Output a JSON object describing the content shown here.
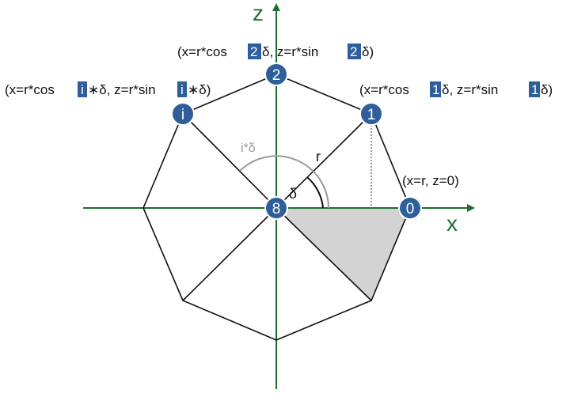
{
  "axes": {
    "x_label": "x",
    "z_label": "z",
    "axis_color": "#1f6e2f"
  },
  "colors": {
    "node_fill": "#2e5f9a",
    "node_text": "#ffffff",
    "highlight_box": "#2e5f9a",
    "wedge_fill": "#d3d3d3",
    "angle_arc_gray": "#9a9a9a",
    "line": "#111111"
  },
  "nodes": [
    {
      "id": "node-8",
      "label": "8"
    },
    {
      "id": "node-0",
      "label": "0"
    },
    {
      "id": "node-1",
      "label": "1"
    },
    {
      "id": "node-2",
      "label": "2"
    },
    {
      "id": "node-i",
      "label": "i"
    }
  ],
  "labels": {
    "radius": "r",
    "angle_delta": "δ",
    "angle_i_delta": "i*δ",
    "coord_0": "(x=r, z=0)",
    "coord_1": {
      "a": "(x=r*cos ",
      "b": "1",
      "c": "δ, z=r*sin ",
      "d": "1",
      "e": "δ)"
    },
    "coord_2": {
      "a": "(x=r*cos ",
      "b": "2",
      "c": "δ, z=r*sin ",
      "d": "2",
      "e": "δ)"
    },
    "coord_i": {
      "a": "(x=r*cos ",
      "b": "i",
      "c": "∗δ, z=r*sin ",
      "d": "i",
      "e": "∗δ)"
    }
  }
}
